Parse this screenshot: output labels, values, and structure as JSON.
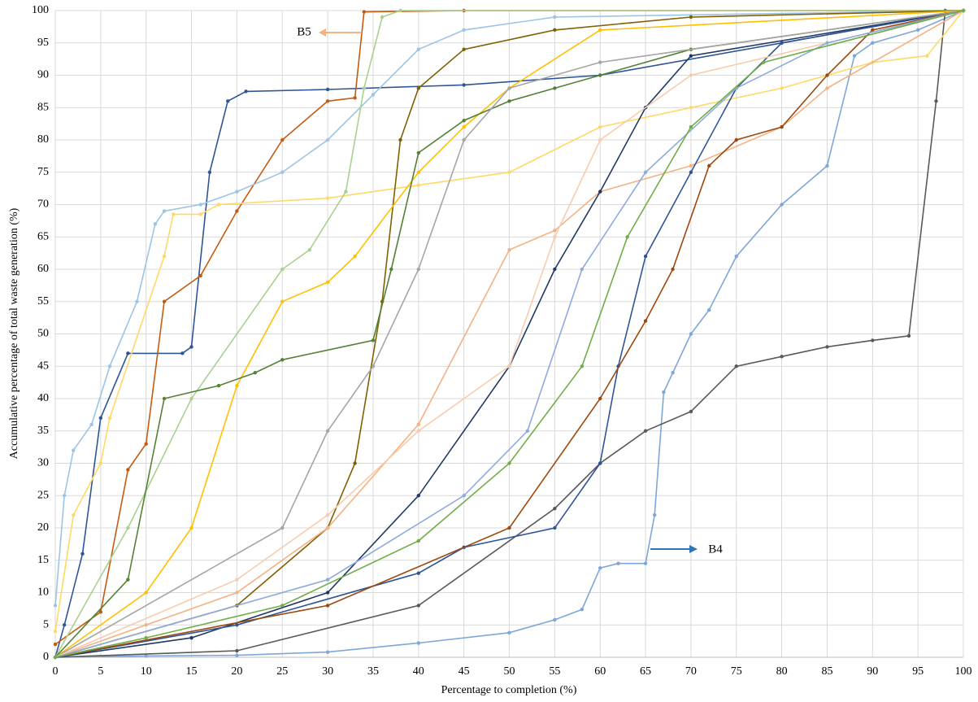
{
  "chart_data": {
    "type": "line",
    "xlabel": "Percentage to completion (%)",
    "ylabel": "Accumulative percentage of total waste generation (%)",
    "xlim": [
      0,
      100
    ],
    "xticks": [
      0,
      5,
      10,
      15,
      20,
      25,
      30,
      35,
      40,
      45,
      50,
      55,
      60,
      65,
      70,
      75,
      80,
      85,
      90,
      95,
      100
    ],
    "ylim": [
      0,
      100
    ],
    "yticks": [
      0,
      5,
      10,
      15,
      20,
      25,
      30,
      35,
      40,
      45,
      50,
      55,
      60,
      65,
      70,
      75,
      80,
      85,
      90,
      95,
      100
    ],
    "grid": true,
    "annotations": [
      {
        "text": "B5"
      },
      {
        "text": "B4"
      }
    ],
    "series": [
      {
        "color": "#7ea6d8",
        "x": [
          0,
          10,
          20,
          30,
          40,
          50,
          55,
          58,
          60,
          62,
          65,
          66,
          67,
          68,
          70,
          72,
          75,
          80,
          85,
          88,
          90,
          95,
          100
        ],
        "values": [
          0,
          0.2,
          0.3,
          0.8,
          2.2,
          3.8,
          5.8,
          7.4,
          13.8,
          14.5,
          14.5,
          22,
          41,
          44,
          50,
          53.7,
          62,
          70,
          76,
          93,
          95,
          97,
          100
        ]
      },
      {
        "color": "#595959",
        "x": [
          0,
          20,
          40,
          55,
          60,
          65,
          70,
          75,
          80,
          85,
          90,
          94,
          97,
          98,
          100
        ],
        "values": [
          0,
          1,
          8,
          23,
          30,
          35,
          38,
          45,
          46.5,
          48,
          49,
          49.7,
          86,
          100,
          100
        ]
      },
      {
        "color": "#2e5597",
        "x": [
          0,
          1,
          3,
          5,
          8,
          14,
          15,
          17,
          19,
          21,
          30,
          45,
          60,
          80,
          100
        ],
        "values": [
          0,
          5,
          16,
          37,
          47,
          47,
          48,
          75,
          86,
          87.5,
          87.8,
          88.5,
          90,
          95,
          100
        ]
      },
      {
        "color": "#c55a11",
        "x": [
          0,
          5,
          8,
          10,
          12,
          16,
          20,
          25,
          30,
          33,
          34,
          45,
          100
        ],
        "values": [
          2,
          7,
          29,
          33,
          55,
          59,
          69,
          80,
          86,
          86.5,
          99.8,
          100,
          100
        ]
      },
      {
        "color": "#9dc3e6",
        "x": [
          0,
          1,
          2,
          4,
          6,
          9,
          11,
          12,
          16,
          20,
          25,
          30,
          35,
          40,
          45,
          55,
          100
        ],
        "values": [
          8,
          25,
          32,
          36,
          45,
          55,
          67,
          69,
          70,
          72,
          75,
          80,
          87,
          94,
          97,
          99,
          100
        ]
      },
      {
        "color": "#ffd966",
        "x": [
          0,
          2,
          5,
          6,
          12,
          13,
          16,
          18,
          30,
          40,
          50,
          60,
          70,
          80,
          90,
          96,
          100
        ],
        "values": [
          4,
          22,
          30,
          37,
          62,
          68.5,
          68.5,
          70,
          71,
          73,
          75,
          82,
          85,
          88,
          92,
          93,
          100
        ]
      },
      {
        "color": "#a9d18e",
        "x": [
          0,
          8,
          15,
          25,
          28,
          32,
          34,
          36,
          38,
          100
        ],
        "values": [
          0,
          20,
          40,
          60,
          63,
          72,
          88,
          99,
          100,
          100
        ]
      },
      {
        "color": "#7f6000",
        "x": [
          0,
          20,
          30,
          33,
          36,
          38,
          40,
          45,
          55,
          70,
          100
        ],
        "values": [
          0,
          8,
          20,
          30,
          55,
          80,
          88,
          94,
          97,
          99,
          100
        ]
      },
      {
        "color": "#ffc000",
        "x": [
          0,
          10,
          15,
          20,
          25,
          30,
          33,
          40,
          45,
          50,
          60,
          100
        ],
        "values": [
          0,
          10,
          20,
          42,
          55,
          58,
          62,
          75,
          82,
          88,
          97,
          100
        ]
      },
      {
        "color": "#548235",
        "x": [
          0,
          8,
          12,
          18,
          22,
          25,
          35,
          37,
          40,
          45,
          50,
          55,
          60,
          70,
          100
        ],
        "values": [
          0,
          12,
          40,
          42,
          44,
          46,
          49,
          60,
          78,
          83,
          86,
          88,
          90,
          94,
          100
        ]
      },
      {
        "color": "#f4b183",
        "x": [
          0,
          10,
          20,
          30,
          40,
          50,
          55,
          60,
          70,
          80,
          85,
          100
        ],
        "values": [
          0,
          5,
          10,
          20,
          36,
          63,
          66,
          72,
          76,
          82,
          88,
          100
        ]
      },
      {
        "color": "#203864",
        "x": [
          0,
          15,
          30,
          40,
          50,
          55,
          60,
          65,
          70,
          100
        ],
        "values": [
          0,
          3,
          10,
          25,
          45,
          60,
          72,
          85,
          93,
          100
        ]
      },
      {
        "color": "#2f5597",
        "x": [
          0,
          20,
          40,
          45,
          55,
          60,
          62,
          65,
          70,
          75,
          80,
          100
        ],
        "values": [
          0,
          5,
          13,
          17,
          20,
          30,
          45,
          62,
          75,
          88,
          95,
          100
        ]
      },
      {
        "color": "#a5a5a5",
        "x": [
          0,
          25,
          30,
          35,
          40,
          45,
          50,
          60,
          100
        ],
        "values": [
          0,
          20,
          35,
          45,
          60,
          80,
          88,
          92,
          100
        ]
      },
      {
        "color": "#9e480e",
        "x": [
          0,
          30,
          50,
          60,
          65,
          68,
          72,
          75,
          80,
          85,
          90,
          100
        ],
        "values": [
          0,
          8,
          20,
          40,
          52,
          60,
          76,
          80,
          82,
          90,
          97,
          100
        ]
      },
      {
        "color": "#f8cbad",
        "x": [
          0,
          20,
          30,
          40,
          50,
          55,
          60,
          70,
          100
        ],
        "values": [
          0,
          12,
          22,
          35,
          45,
          65,
          80,
          90,
          100
        ]
      },
      {
        "color": "#8faadc",
        "x": [
          0,
          30,
          45,
          52,
          58,
          65,
          75,
          85,
          100
        ],
        "values": [
          0,
          12,
          25,
          35,
          60,
          75,
          88,
          95,
          100
        ]
      },
      {
        "color": "#70ad47",
        "x": [
          0,
          10,
          25,
          40,
          50,
          58,
          63,
          70,
          78,
          100
        ],
        "values": [
          0,
          3,
          8,
          18,
          30,
          45,
          65,
          82,
          92,
          100
        ]
      }
    ]
  }
}
